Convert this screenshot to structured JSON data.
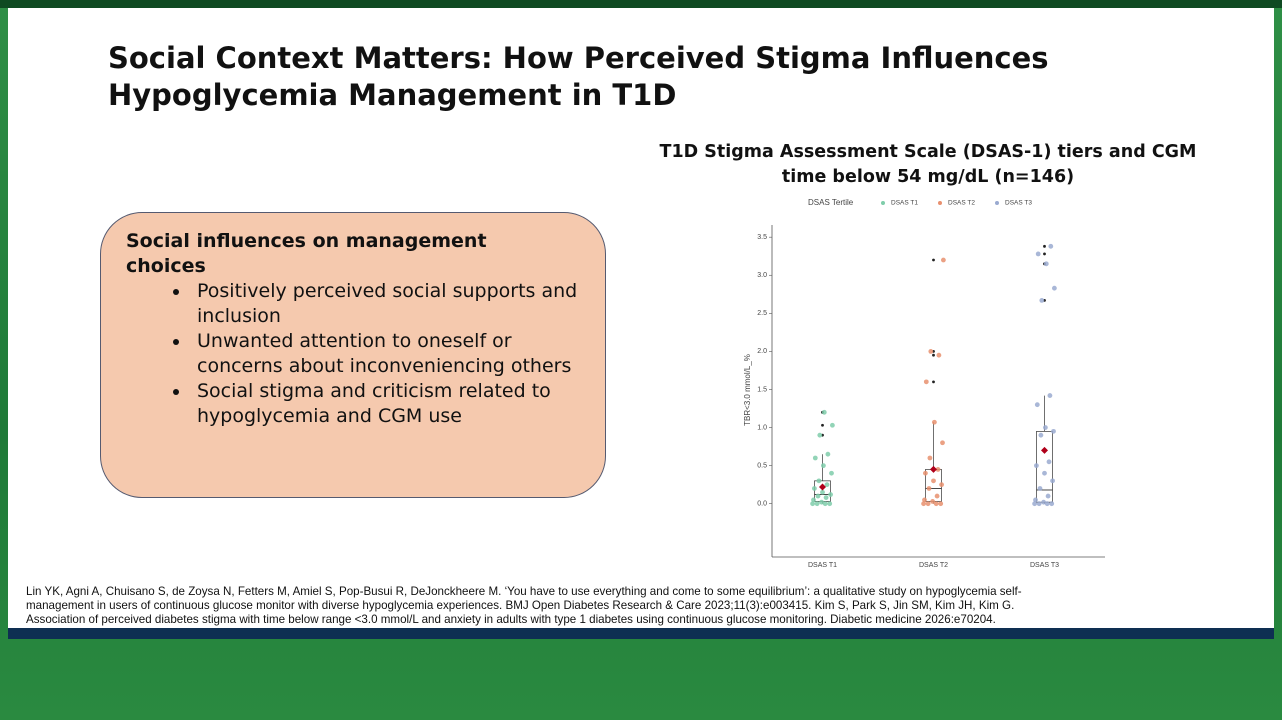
{
  "slide": {
    "title_lines": [
      "Social Context Matters: How Perceived Stigma Influences",
      "Hypoglycemia Management in T1D"
    ],
    "callout": {
      "heading": "Social influences on management choices",
      "bullets": [
        "Positively perceived social supports and inclusion",
        "Unwanted attention to oneself or concerns about inconveniencing others",
        "Social stigma and criticism related to hypoglycemia and CGM use"
      ]
    },
    "citation_lines": [
      "Lin YK, Agni A, Chuisano S, de Zoysa N, Fetters M, Amiel S, Pop-Busui R, DeJonckheere M. ‘You have to use everything and come to some equilibrium’: a qualitative study on hypoglycemia self-",
      "management in users of continuous glucose monitor with diverse hypoglycemia experiences. BMJ Open Diabetes Research & Care 2023;11(3):e003415. Kim S, Park S, Jin SM, Kim JH, Kim G.",
      "Association of perceived diabetes stigma with time below range <3.0 mmol/L and anxiety in adults with type 1 diabetes using continuous glucose monitoring. Diabetic medicine 2026:e70204."
    ]
  },
  "chart_data": {
    "type": "box",
    "title": "T1D Stigma Assessment Scale (DSAS-1) tiers and CGM time below 54 mg/dL (n=146)",
    "legend_title": "DSAS Tertile",
    "y_label": "TBR<3.0 mmol/L_%",
    "categories": [
      "DSAS T1",
      "DSAS T2",
      "DSAS T3"
    ],
    "ylim": [
      -0.7,
      3.66
    ],
    "yticks": [
      {
        "value": 0,
        "label": "0.0"
      },
      0.5,
      {
        "value": 1,
        "label": "1.0"
      },
      1.5,
      {
        "value": 2,
        "label": "2.0"
      },
      2.5,
      {
        "value": 3,
        "label": "3.0"
      },
      3.5
    ],
    "series": [
      {
        "name": "DSAS T1",
        "color": "#7fcdaa",
        "min": 0,
        "q1": 0.03,
        "median": 0.12,
        "q3": 0.3,
        "max": 0.65,
        "mean": 0.22,
        "outliers": [
          0.9,
          1.03,
          1.2
        ],
        "points": [
          0,
          0,
          0,
          0,
          0.02,
          0.05,
          0.08,
          0.1,
          0.12,
          0.15,
          0.2,
          0.25,
          0.3,
          0.4,
          0.5,
          0.6,
          0.65,
          0.9,
          1.03,
          1.2
        ]
      },
      {
        "name": "DSAS T2",
        "color": "#e8906f",
        "min": 0,
        "q1": 0.03,
        "median": 0.2,
        "q3": 0.45,
        "max": 1.07,
        "mean": 0.45,
        "outliers": [
          1.6,
          1.95,
          2.0,
          3.2
        ],
        "points": [
          0,
          0,
          0,
          0,
          0.03,
          0.05,
          0.1,
          0.2,
          0.25,
          0.3,
          0.4,
          0.45,
          0.6,
          0.8,
          1.07,
          1.6,
          1.95,
          2.0,
          3.2
        ]
      },
      {
        "name": "DSAS T3",
        "color": "#9aaad0",
        "min": 0,
        "q1": 0.02,
        "median": 0.18,
        "q3": 0.95,
        "max": 1.42,
        "mean": 0.7,
        "outliers": [
          2.67,
          3.15,
          3.28,
          3.38
        ],
        "points": [
          0,
          0,
          0,
          0,
          0.02,
          0.05,
          0.1,
          0.2,
          0.3,
          0.4,
          0.5,
          0.55,
          0.9,
          0.95,
          1.0,
          1.3,
          1.42,
          2.67,
          2.83,
          3.15,
          3.28,
          3.38
        ]
      }
    ],
    "outlier_color": "#222222",
    "mean_color": "#b0001a"
  }
}
